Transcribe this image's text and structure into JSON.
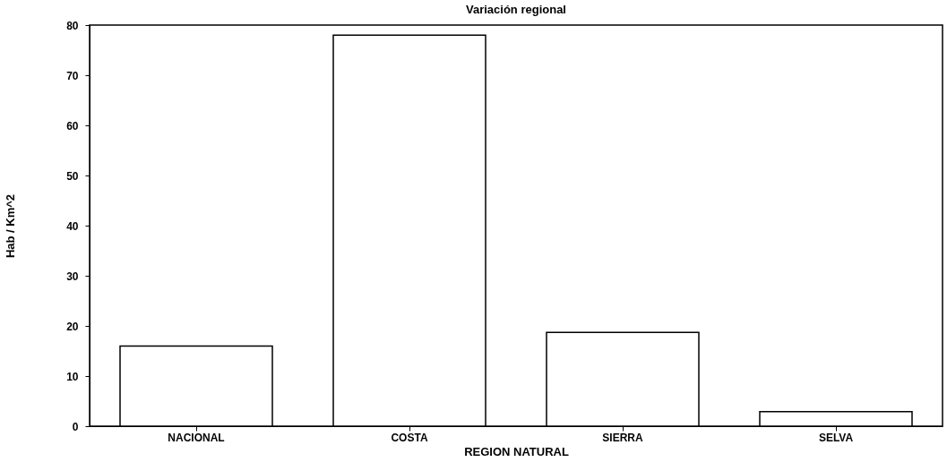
{
  "chart_data": {
    "type": "bar",
    "title": "Variación regional",
    "xlabel": "REGION NATURAL",
    "ylabel": "Hab / Km^2",
    "categories": [
      "NACIONAL",
      "COSTA",
      "SIERRA",
      "SELVA"
    ],
    "values": [
      16.0,
      78.0,
      18.7,
      2.9
    ],
    "color": "#ffffff",
    "ylim": [
      0,
      80
    ],
    "yticks": [
      0,
      10,
      20,
      30,
      40,
      50,
      60,
      70,
      80
    ],
    "grid": false
  }
}
